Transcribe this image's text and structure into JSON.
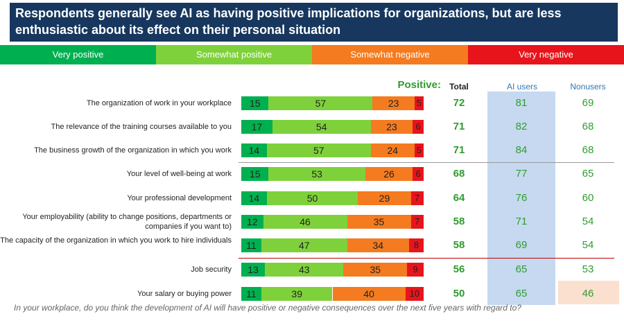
{
  "title": "Respondents generally see AI as having positive implications for organizations, but are less enthusiastic about its effect on their personal situation",
  "legend": [
    {
      "label": "Very positive",
      "color": "#00b050"
    },
    {
      "label": "Somewhat positive",
      "color": "#7fd13b"
    },
    {
      "label": "Somewhat negative",
      "color": "#f47b20"
    },
    {
      "label": "Very negative",
      "color": "#e8141c"
    }
  ],
  "headers": {
    "positive": "Positive:",
    "total": "Total",
    "ai_users": "AI users",
    "nonusers": "Nonusers"
  },
  "colors": {
    "very_positive": "#00b050",
    "somewhat_positive": "#7fd13b",
    "somewhat_negative": "#f47b20",
    "very_negative": "#e8141c",
    "ai_users_column": "#c6d9f0",
    "nonusers_highlight": "#fbe0cf",
    "divider_gray": "#999999",
    "divider_red": "#c00000"
  },
  "footnote": "In your workplace, do you think the development of AI will have positive or negative consequences over the next five years with regard to?",
  "chart_data": {
    "type": "bar",
    "orientation": "horizontal",
    "stacked": true,
    "categories": [
      "The organization of work in your workplace",
      "The relevance of the training courses available to you",
      "The business growth of the organization in which you work",
      "Your level of well-being at work",
      "Your professional development",
      "Your employability (ability to change positions, departments or companies if you want to)",
      "The capacity of the organization in which you work to hire individuals",
      "Job security",
      "Your salary or buying power"
    ],
    "series": [
      {
        "name": "Very positive",
        "values": [
          15,
          17,
          14,
          15,
          14,
          12,
          11,
          13,
          11
        ]
      },
      {
        "name": "Somewhat positive",
        "values": [
          57,
          54,
          57,
          53,
          50,
          46,
          47,
          43,
          39
        ]
      },
      {
        "name": "Somewhat negative",
        "values": [
          23,
          23,
          24,
          26,
          29,
          35,
          34,
          35,
          40
        ]
      },
      {
        "name": "Very negative",
        "values": [
          5,
          6,
          5,
          6,
          7,
          7,
          8,
          9,
          10
        ]
      }
    ],
    "total_positive": [
      72,
      71,
      71,
      68,
      64,
      58,
      58,
      56,
      50
    ],
    "ai_users": [
      81,
      82,
      84,
      77,
      76,
      71,
      69,
      65,
      65
    ],
    "nonusers": [
      69,
      68,
      68,
      65,
      60,
      54,
      54,
      53,
      46
    ],
    "group_dividers": [
      {
        "after_index": 2,
        "color": "gray"
      },
      {
        "after_index": 6,
        "color": "red"
      }
    ],
    "xlim": [
      0,
      100
    ]
  }
}
